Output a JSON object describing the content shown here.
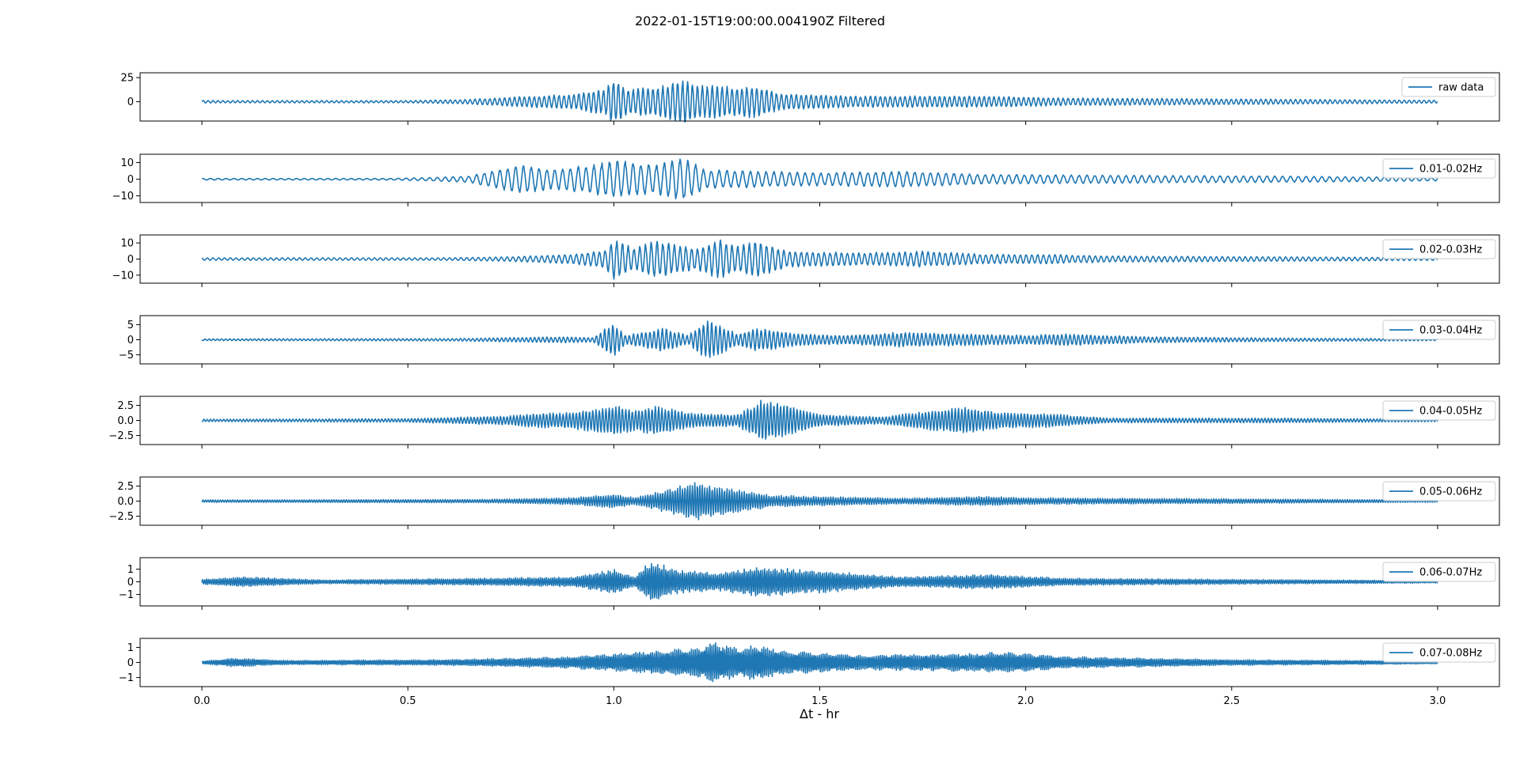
{
  "chart_data": {
    "type": "line",
    "title": "2022-01-15T19:00:00.004190Z Filtered",
    "xlabel": "Δt - hr",
    "xlim": [
      -0.15,
      3.15
    ],
    "x_range": [
      0.0,
      3.0
    ],
    "x_ticks": [
      0.0,
      0.5,
      1.0,
      1.5,
      2.0,
      2.5,
      3.0
    ],
    "x_tick_labels": [
      "0.0",
      "0.5",
      "1.0",
      "1.5",
      "2.0",
      "2.5",
      "3.0"
    ],
    "line_color": "#1f77b4",
    "legend_placement": "upper-right",
    "series": [
      {
        "name": "raw data",
        "ylim": [
          -20,
          30
        ],
        "y_ticks": [
          0,
          25
        ],
        "y_tick_labels": [
          "0",
          "25"
        ],
        "period_hr": 0.012,
        "envelope": [
          [
            0.0,
            1.5
          ],
          [
            0.05,
            1.2
          ],
          [
            0.5,
            1.2
          ],
          [
            0.65,
            2.5
          ],
          [
            0.75,
            5
          ],
          [
            0.9,
            8
          ],
          [
            0.98,
            14
          ],
          [
            1.0,
            25
          ],
          [
            1.03,
            14
          ],
          [
            1.1,
            15
          ],
          [
            1.17,
            24
          ],
          [
            1.2,
            18
          ],
          [
            1.3,
            16
          ],
          [
            1.35,
            17
          ],
          [
            1.4,
            9
          ],
          [
            1.6,
            6
          ],
          [
            1.9,
            6
          ],
          [
            2.1,
            4
          ],
          [
            2.5,
            3
          ],
          [
            3.0,
            1.5
          ]
        ]
      },
      {
        "name": "0.01-0.02Hz",
        "ylim": [
          -14,
          15
        ],
        "y_ticks": [
          -10,
          0,
          10
        ],
        "y_tick_labels": [
          "−10",
          "0",
          "10"
        ],
        "period_hr": 0.019,
        "envelope": [
          [
            0.0,
            0.5
          ],
          [
            0.45,
            0.5
          ],
          [
            0.55,
            1
          ],
          [
            0.65,
            2
          ],
          [
            0.7,
            5
          ],
          [
            0.78,
            9
          ],
          [
            0.85,
            6
          ],
          [
            0.95,
            9
          ],
          [
            1.0,
            12
          ],
          [
            1.05,
            10
          ],
          [
            1.1,
            9
          ],
          [
            1.17,
            14
          ],
          [
            1.22,
            6
          ],
          [
            1.35,
            5
          ],
          [
            1.5,
            4
          ],
          [
            1.7,
            5
          ],
          [
            1.9,
            3
          ],
          [
            2.2,
            2.5
          ],
          [
            2.6,
            2
          ],
          [
            3.0,
            1
          ]
        ]
      },
      {
        "name": "0.02-0.03Hz",
        "ylim": [
          -15,
          15
        ],
        "y_ticks": [
          -10,
          0,
          10
        ],
        "y_tick_labels": [
          "−10",
          "0",
          "10"
        ],
        "period_hr": 0.014,
        "envelope": [
          [
            0.0,
            0.8
          ],
          [
            0.6,
            0.8
          ],
          [
            0.75,
            1.5
          ],
          [
            0.9,
            3
          ],
          [
            0.98,
            6
          ],
          [
            1.0,
            13
          ],
          [
            1.05,
            7
          ],
          [
            1.1,
            12
          ],
          [
            1.2,
            7
          ],
          [
            1.26,
            13
          ],
          [
            1.3,
            8
          ],
          [
            1.35,
            12
          ],
          [
            1.42,
            5
          ],
          [
            1.6,
            4
          ],
          [
            1.75,
            5
          ],
          [
            1.9,
            3
          ],
          [
            2.05,
            3
          ],
          [
            2.2,
            2
          ],
          [
            2.6,
            1.5
          ],
          [
            3.0,
            0.8
          ]
        ]
      },
      {
        "name": "0.03-0.04Hz",
        "ylim": [
          -8,
          8
        ],
        "y_ticks": [
          -5,
          0,
          5
        ],
        "y_tick_labels": [
          "−5",
          "0",
          "5"
        ],
        "period_hr": 0.01,
        "envelope": [
          [
            0.0,
            0.3
          ],
          [
            0.6,
            0.4
          ],
          [
            0.88,
            1
          ],
          [
            0.95,
            0.8
          ],
          [
            1.0,
            6
          ],
          [
            1.03,
            1.5
          ],
          [
            1.12,
            4
          ],
          [
            1.18,
            1.5
          ],
          [
            1.23,
            7
          ],
          [
            1.3,
            2
          ],
          [
            1.35,
            4
          ],
          [
            1.45,
            2
          ],
          [
            1.55,
            1.5
          ],
          [
            1.7,
            2.5
          ],
          [
            1.85,
            2
          ],
          [
            2.0,
            1.5
          ],
          [
            2.1,
            2
          ],
          [
            2.3,
            1
          ],
          [
            2.6,
            0.6
          ],
          [
            3.0,
            0.3
          ]
        ]
      },
      {
        "name": "0.04-0.05Hz",
        "ylim": [
          -4,
          4
        ],
        "y_ticks": [
          -2.5,
          0.0,
          2.5
        ],
        "y_tick_labels": [
          "−2.5",
          "0.0",
          "2.5"
        ],
        "period_hr": 0.008,
        "envelope": [
          [
            0.0,
            0.2
          ],
          [
            0.5,
            0.3
          ],
          [
            0.75,
            0.8
          ],
          [
            0.8,
            1.2
          ],
          [
            0.9,
            1.4
          ],
          [
            1.0,
            2.5
          ],
          [
            1.05,
            1.8
          ],
          [
            1.1,
            2.4
          ],
          [
            1.2,
            1.2
          ],
          [
            1.3,
            1
          ],
          [
            1.36,
            3.5
          ],
          [
            1.43,
            2.5
          ],
          [
            1.5,
            1
          ],
          [
            1.65,
            0.6
          ],
          [
            1.75,
            1.5
          ],
          [
            1.85,
            2.2
          ],
          [
            1.95,
            1.3
          ],
          [
            2.05,
            1.2
          ],
          [
            2.2,
            0.4
          ],
          [
            2.6,
            0.4
          ],
          [
            3.0,
            0.2
          ]
        ]
      },
      {
        "name": "0.05-0.06Hz",
        "ylim": [
          -4,
          4
        ],
        "y_ticks": [
          -2.5,
          0.0,
          2.5
        ],
        "y_tick_labels": [
          "−2.5",
          "0.0",
          "2.5"
        ],
        "period_hr": 0.006,
        "envelope": [
          [
            0.0,
            0.2
          ],
          [
            0.7,
            0.3
          ],
          [
            0.9,
            0.6
          ],
          [
            1.0,
            1.2
          ],
          [
            1.05,
            0.6
          ],
          [
            1.12,
            1.8
          ],
          [
            1.2,
            3.2
          ],
          [
            1.3,
            2
          ],
          [
            1.38,
            1
          ],
          [
            1.5,
            0.8
          ],
          [
            1.7,
            0.5
          ],
          [
            1.9,
            0.8
          ],
          [
            2.0,
            0.6
          ],
          [
            2.2,
            0.5
          ],
          [
            2.5,
            0.4
          ],
          [
            3.0,
            0.2
          ]
        ]
      },
      {
        "name": "0.06-0.07Hz",
        "ylim": [
          -1.9,
          1.9
        ],
        "y_ticks": [
          -1,
          0,
          1
        ],
        "y_tick_labels": [
          "−1",
          "0",
          "1"
        ],
        "period_hr": 0.005,
        "envelope": [
          [
            0.0,
            0.2
          ],
          [
            0.1,
            0.4
          ],
          [
            0.3,
            0.15
          ],
          [
            0.7,
            0.3
          ],
          [
            0.9,
            0.4
          ],
          [
            1.0,
            1.0
          ],
          [
            1.05,
            0.4
          ],
          [
            1.09,
            1.7
          ],
          [
            1.15,
            1.0
          ],
          [
            1.25,
            0.7
          ],
          [
            1.35,
            1.2
          ],
          [
            1.5,
            0.9
          ],
          [
            1.7,
            0.4
          ],
          [
            1.9,
            0.6
          ],
          [
            2.1,
            0.3
          ],
          [
            2.5,
            0.2
          ],
          [
            3.0,
            0.1
          ]
        ]
      },
      {
        "name": "0.07-0.08Hz",
        "ylim": [
          -1.6,
          1.6
        ],
        "y_ticks": [
          -1,
          0,
          1
        ],
        "y_tick_labels": [
          "−1",
          "0",
          "1"
        ],
        "period_hr": 0.0045,
        "envelope": [
          [
            0.0,
            0.1
          ],
          [
            0.08,
            0.3
          ],
          [
            0.2,
            0.15
          ],
          [
            0.6,
            0.2
          ],
          [
            0.9,
            0.4
          ],
          [
            1.0,
            0.6
          ],
          [
            1.1,
            0.8
          ],
          [
            1.2,
            1.0
          ],
          [
            1.25,
            1.4
          ],
          [
            1.3,
            1.0
          ],
          [
            1.35,
            1.2
          ],
          [
            1.42,
            0.8
          ],
          [
            1.6,
            0.5
          ],
          [
            1.85,
            0.6
          ],
          [
            1.95,
            0.7
          ],
          [
            2.1,
            0.4
          ],
          [
            2.5,
            0.2
          ],
          [
            3.0,
            0.1
          ]
        ]
      }
    ]
  }
}
